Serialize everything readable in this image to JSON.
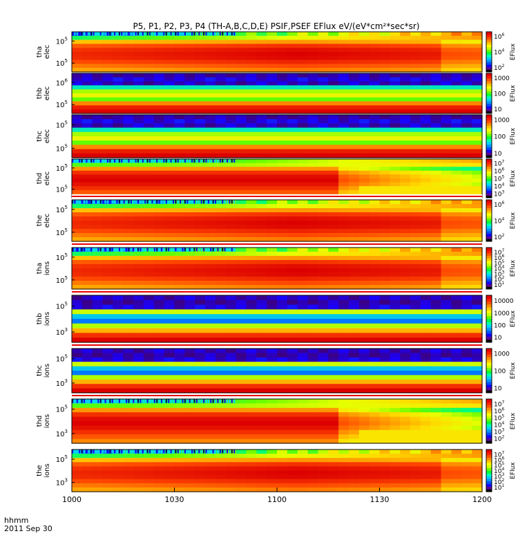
{
  "title": "P5, P1, P2, P3, P4 (TH-A,B,C,D,E) PSIF,PSEF EFlux eV/(eV*cm²*sec*sr)",
  "xaxis": {
    "label_top": "hhmm",
    "label_bottom": "2011 Sep 30",
    "ticks": [
      "1000",
      "1030",
      "1100",
      "1130",
      "1200"
    ],
    "tick_positions_min": [
      0,
      30,
      60,
      90,
      120
    ]
  },
  "chart_data": [
    {
      "type": "heatmap",
      "probe": "tha",
      "species": "elec",
      "ylabel": [
        "tha",
        "elec"
      ],
      "ytick_labels": [
        "10",
        "10"
      ],
      "ytick_exps": [
        "5",
        "5"
      ],
      "colorbar": {
        "title": "EFlux",
        "ticks": [
          {
            "b": "10",
            "e": "6"
          },
          {
            "b": "10",
            "e": "4"
          },
          {
            "b": "10",
            "e": "2"
          }
        ]
      }
    },
    {
      "type": "heatmap",
      "probe": "thb",
      "species": "elec",
      "ylabel": [
        "thb",
        "elec"
      ],
      "ytick_labels": [
        "10",
        "10"
      ],
      "ytick_exps": [
        "6",
        "5"
      ],
      "colorbar": {
        "title": "EFlux",
        "ticks": [
          {
            "b": "1000",
            "e": ""
          },
          {
            "b": "100",
            "e": ""
          },
          {
            "b": "10",
            "e": ""
          }
        ]
      }
    },
    {
      "type": "heatmap",
      "probe": "thc",
      "species": "elec",
      "ylabel": [
        "thc",
        "elec"
      ],
      "ytick_labels": [
        "10",
        "10"
      ],
      "ytick_exps": [
        "5",
        "5"
      ],
      "colorbar": {
        "title": "EFlux",
        "ticks": [
          {
            "b": "1000",
            "e": ""
          },
          {
            "b": "100",
            "e": ""
          },
          {
            "b": "10",
            "e": ""
          }
        ]
      }
    },
    {
      "type": "heatmap",
      "probe": "thd",
      "species": "elec",
      "ylabel": [
        "thd",
        "elec"
      ],
      "ytick_labels": [
        "10",
        "10"
      ],
      "ytick_exps": [
        "5",
        "5"
      ],
      "colorbar": {
        "title": "EFlux",
        "ticks": [
          {
            "b": "10",
            "e": "7"
          },
          {
            "b": "10",
            "e": "6"
          },
          {
            "b": "10",
            "e": "5"
          },
          {
            "b": "10",
            "e": "4"
          },
          {
            "b": "10",
            "e": "3"
          }
        ]
      }
    },
    {
      "type": "heatmap",
      "probe": "the",
      "species": "elec",
      "ylabel": [
        "the",
        "elec"
      ],
      "ytick_labels": [
        "10",
        "10"
      ],
      "ytick_exps": [
        "5",
        "5"
      ],
      "colorbar": {
        "title": "EFlux",
        "ticks": [
          {
            "b": "10",
            "e": "6"
          },
          {
            "b": "10",
            "e": "4"
          },
          {
            "b": "10",
            "e": "2"
          }
        ]
      }
    },
    {
      "type": "heatmap",
      "probe": "tha",
      "species": "ions",
      "ylabel": [
        "tha",
        "ions"
      ],
      "ytick_labels": [
        "10",
        "10"
      ],
      "ytick_exps": [
        "5",
        "5"
      ],
      "colorbar": {
        "title": "EFlux",
        "ticks": [
          {
            "b": "10",
            "e": "7"
          },
          {
            "b": "10",
            "e": "6"
          },
          {
            "b": "10",
            "e": "5"
          },
          {
            "b": "10",
            "e": "4"
          },
          {
            "b": "10",
            "e": "3"
          },
          {
            "b": "10",
            "e": "2"
          },
          {
            "b": "10",
            "e": "1"
          }
        ]
      }
    },
    {
      "type": "heatmap",
      "probe": "thb",
      "species": "ions",
      "ylabel": [
        "thb",
        "ions"
      ],
      "ytick_labels": [
        "10",
        "10"
      ],
      "ytick_exps": [
        "5",
        "3"
      ],
      "colorbar": {
        "title": "EFlux",
        "ticks": [
          {
            "b": "10000",
            "e": ""
          },
          {
            "b": "1000",
            "e": ""
          },
          {
            "b": "100",
            "e": ""
          },
          {
            "b": "10",
            "e": ""
          }
        ]
      }
    },
    {
      "type": "heatmap",
      "probe": "thc",
      "species": "ions",
      "ylabel": [
        "thc",
        "ions"
      ],
      "ytick_labels": [
        "10",
        "10"
      ],
      "ytick_exps": [
        "5",
        "3"
      ],
      "colorbar": {
        "title": "EFlux",
        "ticks": [
          {
            "b": "1000",
            "e": ""
          },
          {
            "b": "100",
            "e": ""
          },
          {
            "b": "10",
            "e": ""
          }
        ]
      }
    },
    {
      "type": "heatmap",
      "probe": "thd",
      "species": "ions",
      "ylabel": [
        "thd",
        "ions"
      ],
      "ytick_labels": [
        "10",
        "10"
      ],
      "ytick_exps": [
        "5",
        "3"
      ],
      "colorbar": {
        "title": "EFlux",
        "ticks": [
          {
            "b": "10",
            "e": "7"
          },
          {
            "b": "10",
            "e": "6"
          },
          {
            "b": "10",
            "e": "5"
          },
          {
            "b": "10",
            "e": "4"
          },
          {
            "b": "10",
            "e": "3"
          },
          {
            "b": "10",
            "e": "2"
          }
        ]
      }
    },
    {
      "type": "heatmap",
      "probe": "the",
      "species": "ions",
      "ylabel": [
        "the",
        "ions"
      ],
      "ytick_labels": [
        "10",
        "10"
      ],
      "ytick_exps": [
        "5",
        "3"
      ],
      "colorbar": {
        "title": "EFlux",
        "ticks": [
          {
            "b": "10",
            "e": "7"
          },
          {
            "b": "10",
            "e": "6"
          },
          {
            "b": "10",
            "e": "5"
          },
          {
            "b": "10",
            "e": "4"
          },
          {
            "b": "10",
            "e": "3"
          },
          {
            "b": "10",
            "e": "2"
          },
          {
            "b": "10",
            "e": "1"
          }
        ]
      }
    }
  ]
}
